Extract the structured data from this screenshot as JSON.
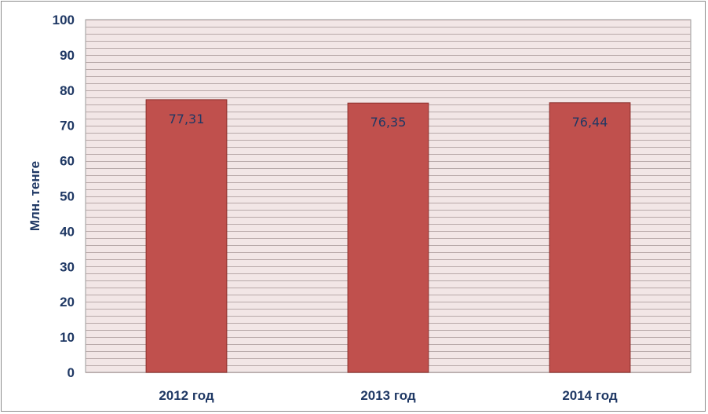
{
  "chart_data": {
    "type": "bar",
    "categories": [
      "2012 год",
      "2013 год",
      "2014 год"
    ],
    "values": [
      77.31,
      76.35,
      76.44
    ],
    "data_labels": [
      "77,31",
      "76,35",
      "76,44"
    ],
    "title": "",
    "xlabel": "",
    "ylabel": "Млн. тенге",
    "ylim": [
      0,
      100
    ],
    "yticks": [
      0,
      10,
      20,
      30,
      40,
      50,
      60,
      70,
      80,
      90,
      100
    ],
    "minor_gridlines_per_major": 5,
    "grid": true,
    "legend": "none",
    "colors": {
      "bar": "#c0504d",
      "bar_border": "#8b2f2c",
      "plot_background": "#f2e6e6",
      "gridline": "#b8a9a9",
      "text": "#1f3864"
    }
  }
}
